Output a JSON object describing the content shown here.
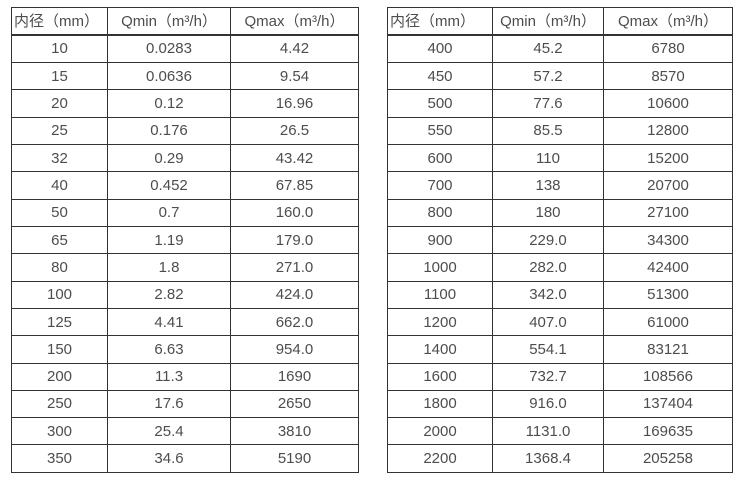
{
  "styles": {
    "background": "#ffffff",
    "border_color": "#333333",
    "text_color": "#4d4d4d"
  },
  "chart_data": [
    {
      "type": "table",
      "columns": [
        "内径（mm）",
        "Qmin（m³/h）",
        "Qmax（m³/h）"
      ],
      "rows": [
        [
          "10",
          "0.0283",
          "4.42"
        ],
        [
          "15",
          "0.0636",
          "9.54"
        ],
        [
          "20",
          "0.12",
          "16.96"
        ],
        [
          "25",
          "0.176",
          "26.5"
        ],
        [
          "32",
          "0.29",
          "43.42"
        ],
        [
          "40",
          "0.452",
          "67.85"
        ],
        [
          "50",
          "0.7",
          "160.0"
        ],
        [
          "65",
          "1.19",
          "179.0"
        ],
        [
          "80",
          "1.8",
          "271.0"
        ],
        [
          "100",
          "2.82",
          "424.0"
        ],
        [
          "125",
          "4.41",
          "662.0"
        ],
        [
          "150",
          "6.63",
          "954.0"
        ],
        [
          "200",
          "11.3",
          "1690"
        ],
        [
          "250",
          "17.6",
          "2650"
        ],
        [
          "300",
          "25.4",
          "3810"
        ],
        [
          "350",
          "34.6",
          "5190"
        ]
      ]
    },
    {
      "type": "table",
      "columns": [
        "内径（mm）",
        "Qmin（m³/h）",
        "Qmax（m³/h）"
      ],
      "rows": [
        [
          "400",
          "45.2",
          "6780"
        ],
        [
          "450",
          "57.2",
          "8570"
        ],
        [
          "500",
          "77.6",
          "10600"
        ],
        [
          "550",
          "85.5",
          "12800"
        ],
        [
          "600",
          "110",
          "15200"
        ],
        [
          "700",
          "138",
          "20700"
        ],
        [
          "800",
          "180",
          "27100"
        ],
        [
          "900",
          "229.0",
          "34300"
        ],
        [
          "1000",
          "282.0",
          "42400"
        ],
        [
          "1100",
          "342.0",
          "51300"
        ],
        [
          "1200",
          "407.0",
          "61000"
        ],
        [
          "1400",
          "554.1",
          "83121"
        ],
        [
          "1600",
          "732.7",
          "108566"
        ],
        [
          "1800",
          "916.0",
          "137404"
        ],
        [
          "2000",
          "1131.0",
          "169635"
        ],
        [
          "2200",
          "1368.4",
          "205258"
        ]
      ]
    }
  ]
}
